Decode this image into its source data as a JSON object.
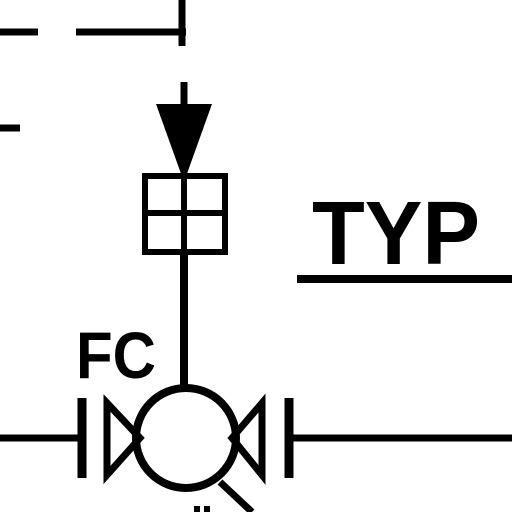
{
  "diagram": {
    "type": "P&ID control valve detail",
    "labels": {
      "typical_note": "TYP",
      "failure_mode": "FC"
    },
    "colors": {
      "ink": "#000000",
      "background": "#ffffff"
    },
    "symbols": [
      "dashed-signal-line",
      "signal-arrow",
      "actuator-box",
      "valve-stem",
      "valve-body-circle",
      "valve-inlet-triangle",
      "valve-outlet-triangle",
      "pipe-flanges",
      "process-pipe"
    ]
  }
}
